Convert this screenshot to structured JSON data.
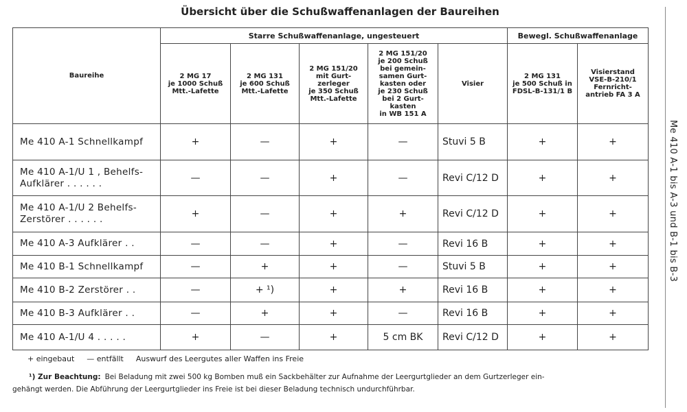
{
  "title": "Übersicht über die Schußwaffenanlagen der Baureihen",
  "side_text": "Me 410 A-1 bis A-3 und B-1 bis B-3",
  "table": {
    "row_header": "Baureihe",
    "groups": [
      {
        "label": "Starre Schußwaffenanlage, ungesteuert",
        "span": 5
      },
      {
        "label": "Bewegl. Schußwaffenanlage",
        "span": 2
      }
    ],
    "columns": [
      [
        "2 MG 17",
        "je 1000 Schuß",
        "Mtt.-Lafette"
      ],
      [
        "2 MG 131",
        "je 600 Schuß",
        "Mtt.-Lafette"
      ],
      [
        "2 MG 151/20",
        "mit Gurt-",
        "zerleger",
        "je 350 Schuß",
        "Mtt.-Lafette"
      ],
      [
        "2 MG 151/20",
        "je 200 Schuß",
        "bei gemein-",
        "samen Gurt-",
        "kasten oder",
        "je 230 Schuß",
        "bei 2 Gurt-",
        "kasten",
        "in WB 151 A"
      ],
      [
        "Visier"
      ],
      [
        "2 MG 131",
        "je 500 Schuß in",
        "FDSL-B-131/1 B"
      ],
      [
        "Visierstand",
        "VSE-B-210/1",
        "Fernricht-",
        "antrieb FA 3 A"
      ]
    ],
    "rows": [
      {
        "name": [
          "Me 410 A-1 Schnellkampf"
        ],
        "cells": [
          "+",
          "—",
          "+",
          "—",
          "Stuvi 5 B",
          "+",
          "+"
        ]
      },
      {
        "name": [
          "Me 410 A-1/U 1 , Behelfs-",
          "Aufklärer . . . . . ."
        ],
        "cells": [
          "—",
          "—",
          "+",
          "—",
          "Revi C/12 D",
          "+",
          "+"
        ]
      },
      {
        "name": [
          "Me 410 A-1/U 2 Behelfs-",
          "Zerstörer . . . . . ."
        ],
        "cells": [
          "+",
          "—",
          "+",
          "+",
          "Revi C/12 D",
          "+",
          "+"
        ]
      },
      {
        "name": [
          "Me 410 A-3 Aufklärer . ."
        ],
        "cells": [
          "—",
          "—",
          "+",
          "—",
          "Revi 16 B",
          "+",
          "+"
        ]
      },
      {
        "name": [
          "Me 410 B-1 Schnellkampf"
        ],
        "cells": [
          "—",
          "+",
          "+",
          "—",
          "Stuvi 5 B",
          "+",
          "+"
        ]
      },
      {
        "name": [
          "Me 410 B-2 Zerstörer . ."
        ],
        "cells": [
          "—",
          "+ ¹)",
          "+",
          "+",
          "Revi 16 B",
          "+",
          "+"
        ]
      },
      {
        "name": [
          "Me 410 B-3 Aufklärer . ."
        ],
        "cells": [
          "—",
          "+",
          "+",
          "—",
          "Revi 16 B",
          "+",
          "+"
        ]
      },
      {
        "name": [
          "Me 410 A-1/U 4 . . . . ."
        ],
        "cells": [
          "+",
          "—",
          "+",
          "5 cm BK",
          "Revi C/12 D",
          "+",
          "+"
        ]
      }
    ]
  },
  "legend": [
    "+ eingebaut",
    "— entfällt",
    "Auswurf des Leergutes aller Waffen ins Freie"
  ],
  "footnote": {
    "lead": "¹) Zur Beachtung:",
    "lines": [
      "Bei Beladung mit zwei 500 kg Bomben muß ein Sackbehälter zur Aufnahme der Leergurtglieder an dem Gurtzerleger ein-",
      "gehängt werden. Die Abführung der Leergurtglieder ins Freie ist bei dieser Beladung technisch undurchführbar."
    ]
  }
}
